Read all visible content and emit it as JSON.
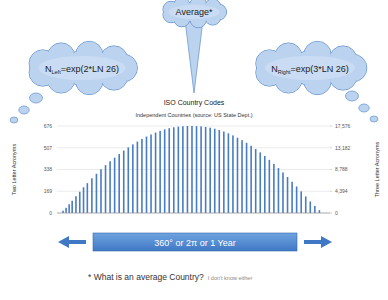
{
  "chart_data": {
    "type": "bar",
    "title": "ISO Country Codes",
    "subtitle": "Independent Countries (source: US State Dept.)",
    "y_label": "Two Letter Acronyms",
    "y2_label": "Three Letter Acronyms",
    "x": [
      8,
      12,
      16,
      20,
      25,
      30,
      35,
      40,
      46,
      52,
      58,
      64,
      70,
      76,
      82,
      88,
      94,
      100,
      106,
      112,
      118,
      124,
      130,
      136,
      142,
      148,
      154,
      160,
      166,
      172,
      178,
      184,
      190,
      196,
      202,
      208,
      214,
      220,
      226,
      232,
      238,
      244,
      250,
      256,
      262,
      268,
      274,
      280,
      286,
      292,
      298,
      304,
      310,
      316,
      322,
      328,
      334,
      340,
      346
    ],
    "values": [
      18,
      40,
      68,
      95,
      130,
      165,
      200,
      232,
      270,
      305,
      340,
      372,
      402,
      430,
      458,
      485,
      510,
      533,
      555,
      575,
      594,
      610,
      625,
      638,
      650,
      659,
      666,
      671,
      674,
      676,
      676,
      675,
      673,
      669,
      663,
      655,
      645,
      633,
      619,
      603,
      585,
      566,
      545,
      522,
      497,
      471,
      443,
      413,
      382,
      349,
      315,
      280,
      243,
      206,
      168,
      129,
      90,
      55,
      22
    ],
    "color": "#4a7cc4",
    "xlim": [
      0,
      360
    ],
    "ylim": [
      0,
      676
    ],
    "yticks": [
      0,
      169,
      338,
      507,
      676
    ],
    "y2lim": [
      0,
      17576
    ],
    "y2ticks": [
      0,
      {
        "value": 4394,
        "label": "4,394"
      },
      {
        "value": 8788,
        "label": "8,788"
      },
      {
        "value": 13182,
        "label": "13,182"
      },
      {
        "value": 17576,
        "label": "17,576"
      }
    ],
    "grid": true
  },
  "callouts": {
    "top": "Average*",
    "left": {
      "n": "N",
      "sub": "Left",
      "rest": "=exp(2*LN 26)"
    },
    "right": {
      "n": "N",
      "sub": "Right",
      "rest": "=exp(3*LN 26)"
    }
  },
  "arrow_label": "360° or 2π or 1 Year",
  "footnote": {
    "main": "* What is an average Country?",
    "aside": "I don't know either"
  }
}
